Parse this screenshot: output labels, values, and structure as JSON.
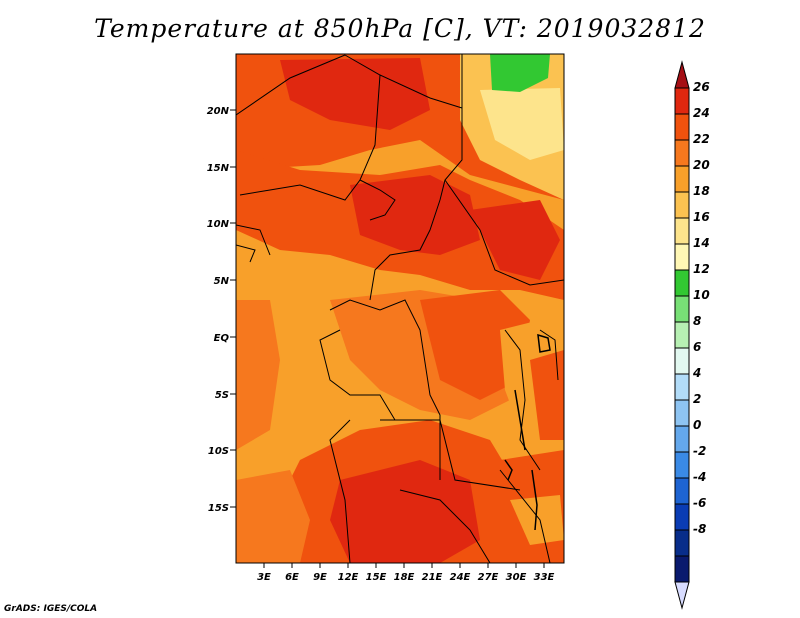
{
  "title": "Temperature at 850hPa [C], VT: 2019032812",
  "credit": "GrADS: IGES/COLA",
  "map": {
    "lat_ticks": [
      "20N",
      "15N",
      "10N",
      "5N",
      "EQ",
      "5S",
      "10S",
      "15S"
    ],
    "lon_ticks": [
      "3E",
      "6E",
      "9E",
      "12E",
      "15E",
      "18E",
      "21E",
      "24E",
      "27E",
      "30E",
      "33E"
    ]
  },
  "colorbar": {
    "labels": [
      "26",
      "24",
      "22",
      "20",
      "18",
      "16",
      "14",
      "12",
      "10",
      "8",
      "6",
      "4",
      "2",
      "0",
      "-2",
      "-4",
      "-6",
      "-8"
    ],
    "colors": [
      "#a50f15",
      "#e02810",
      "#f0520e",
      "#f6781e",
      "#f8a02a",
      "#fbc251",
      "#fde48c",
      "#fff7b5",
      "#32c832",
      "#78e076",
      "#b7f0b3",
      "#e2f8f0",
      "#b2dcf8",
      "#8ec4f2",
      "#64a8ec",
      "#3a8ae6",
      "#1e64d2",
      "#0a3cb4",
      "#082d8a",
      "#0a1a6e",
      "#d8dcff"
    ]
  }
}
